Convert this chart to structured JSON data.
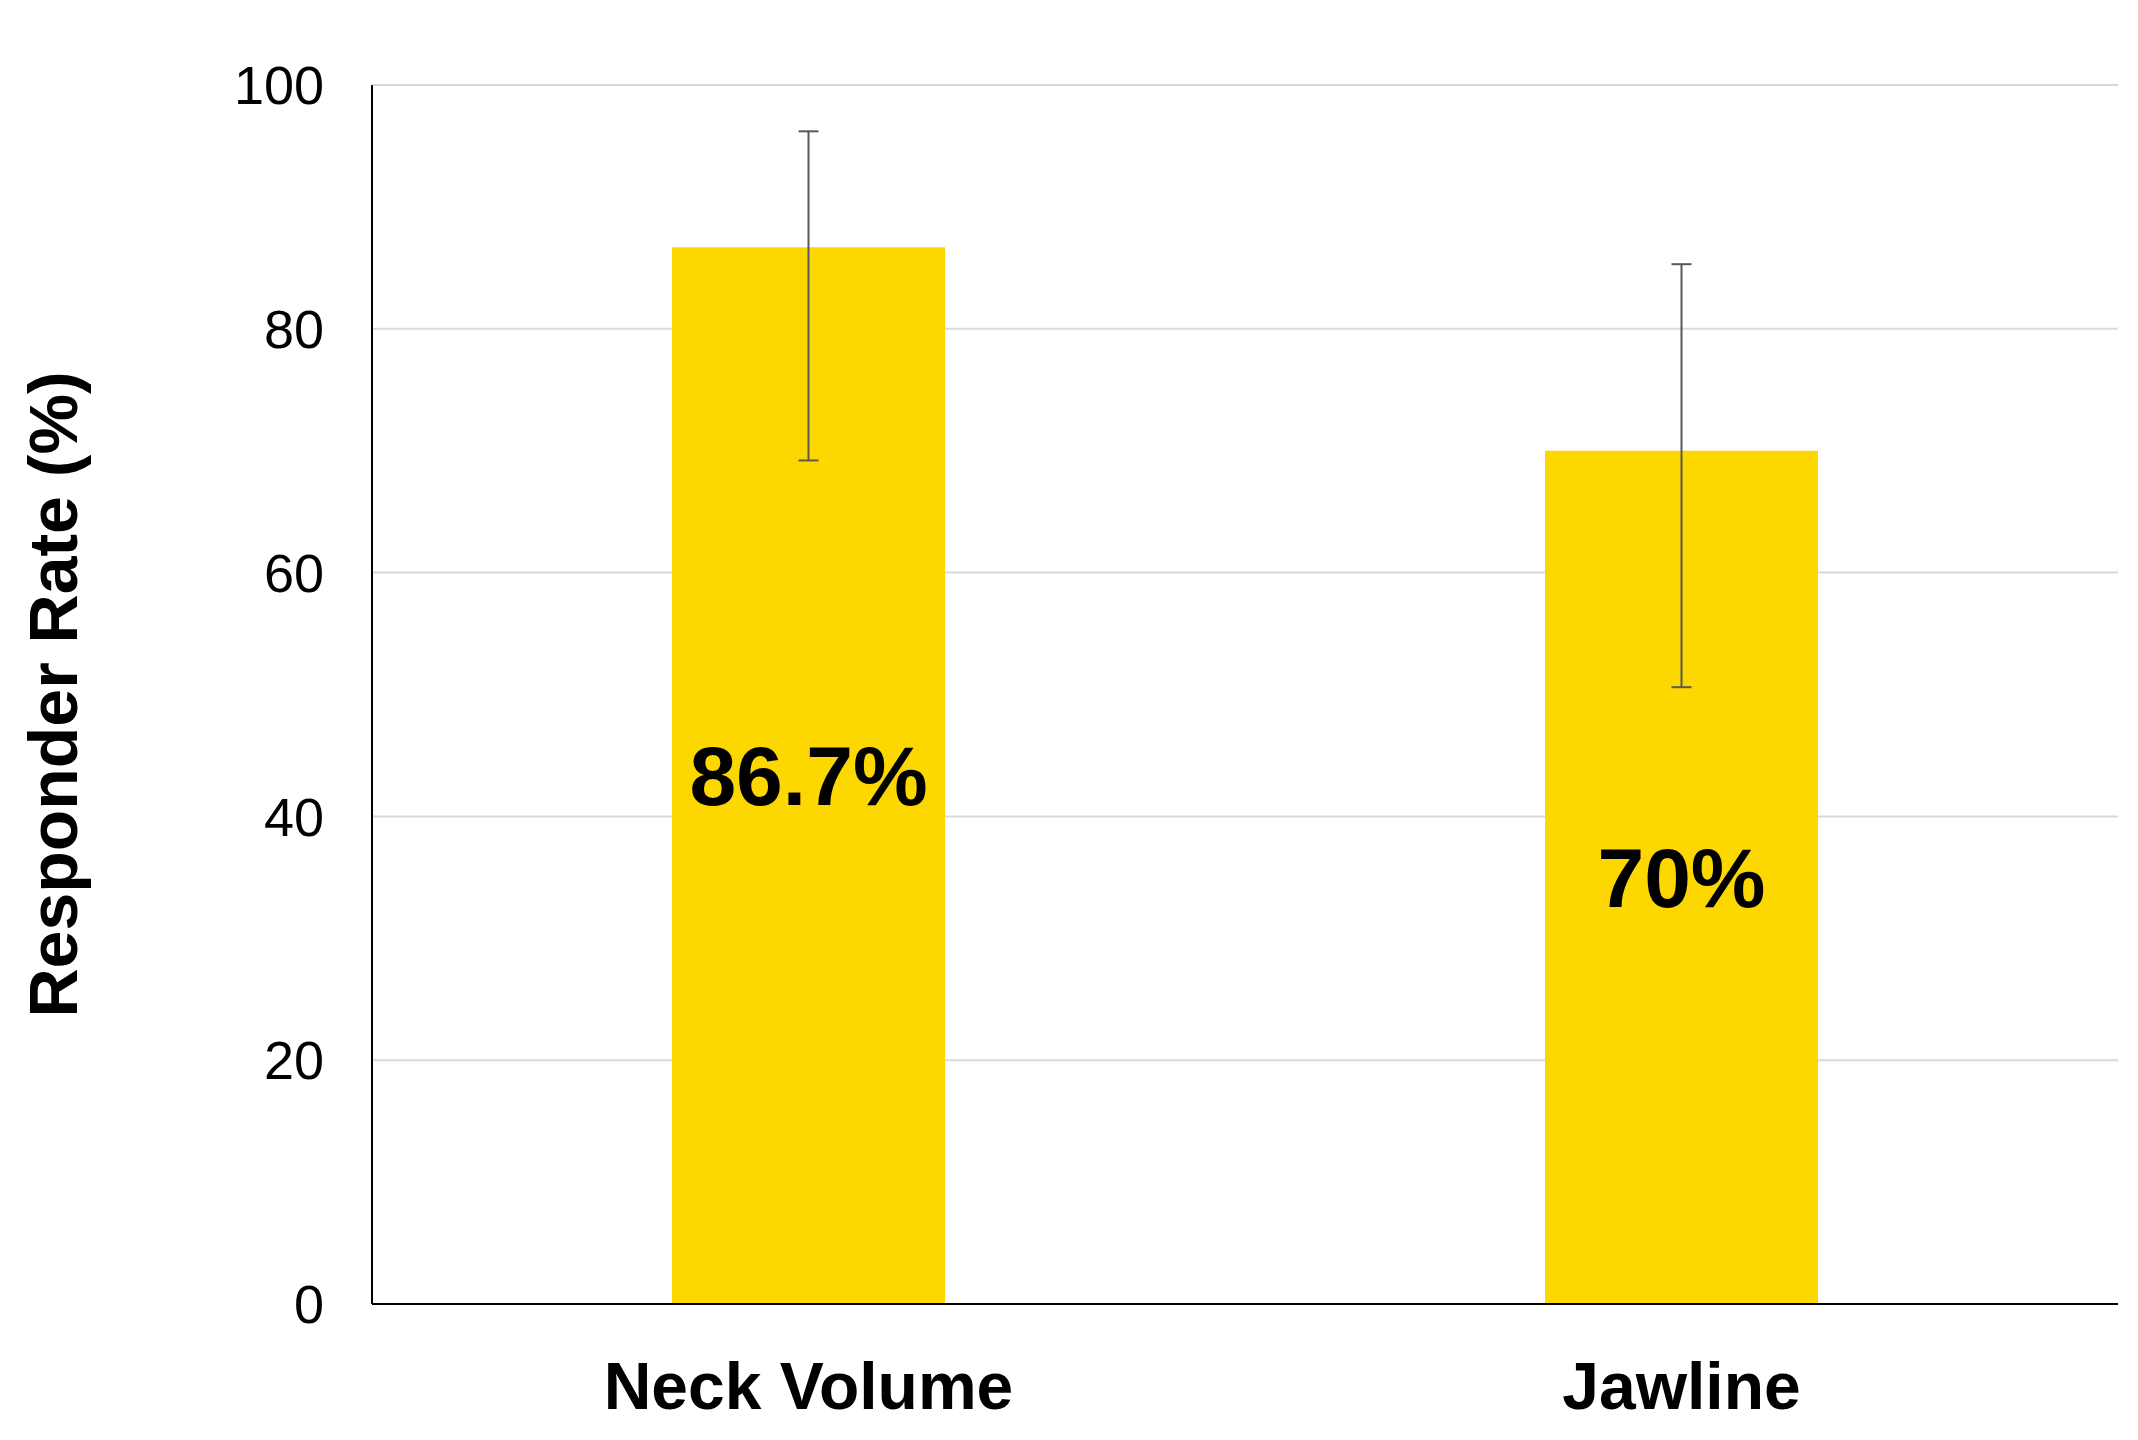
{
  "chart_data": {
    "type": "bar",
    "ylabel": "Responder Rate (%)",
    "categories": [
      "Neck Volume",
      "Jawline"
    ],
    "values": [
      86.7,
      70
    ],
    "color": "#fdd700",
    "errors": [
      [
        69.2,
        96.2
      ],
      [
        50.6,
        85.3
      ]
    ],
    "value_labels": [
      "86.7%",
      "70%"
    ],
    "ylim": [
      0,
      100
    ],
    "yticks": [
      0,
      20,
      40,
      60,
      80,
      100
    ],
    "grid": "y",
    "legend": false
  }
}
